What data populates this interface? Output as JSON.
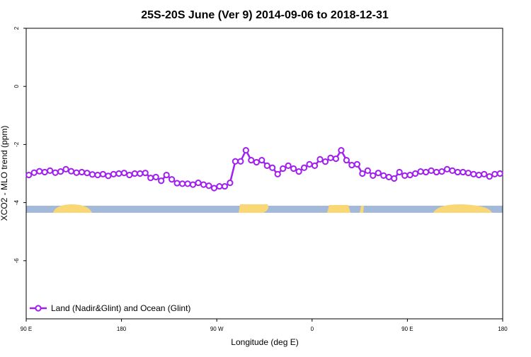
{
  "chart_data": {
    "type": "line",
    "title": "25S-20S June (Ver 9)   2014-09-06 to 2018-12-31",
    "x_label": "Longitude (deg E)",
    "y_label": "XCO2 - MLO trend (ppm)",
    "x": [
      92.5,
      97.5,
      102.5,
      107.5,
      112.5,
      117.5,
      122.5,
      127.5,
      132.5,
      137.5,
      142.5,
      147.5,
      152.5,
      157.5,
      162.5,
      167.5,
      172.5,
      177.5,
      182.5,
      187.5,
      192.5,
      197.5,
      202.5,
      207.5,
      212.5,
      217.5,
      222.5,
      227.5,
      232.5,
      237.5,
      242.5,
      247.5,
      252.5,
      257.5,
      262.5,
      267.5,
      272.5,
      277.5,
      282.5,
      287.5,
      292.5,
      297.5,
      302.5,
      307.5,
      312.5,
      317.5,
      322.5,
      327.5,
      332.5,
      337.5,
      342.5,
      347.5,
      352.5,
      357.5,
      362.5,
      367.5,
      372.5,
      377.5,
      382.5,
      387.5,
      392.5,
      397.5,
      402.5,
      407.5,
      412.5,
      417.5,
      422.5,
      427.5,
      432.5,
      437.5,
      442.5,
      447.5,
      452.5,
      457.5,
      462.5,
      467.5,
      472.5,
      477.5,
      482.5,
      487.5,
      492.5,
      497.5,
      502.5,
      507.5,
      512.5,
      517.5,
      522.5,
      527.5,
      532.5,
      537.5
    ],
    "series": [
      {
        "name": "Land (Nadir&Glint) and Ocean (Glint)",
        "color": "#a020f0",
        "values": [
          -3.05,
          -2.97,
          -2.92,
          -2.95,
          -2.9,
          -2.97,
          -2.93,
          -2.85,
          -2.92,
          -2.97,
          -2.95,
          -2.98,
          -3.03,
          -3.05,
          -3.02,
          -3.08,
          -3.02,
          -3.0,
          -2.98,
          -3.05,
          -3.0,
          -3.0,
          -2.98,
          -3.15,
          -3.12,
          -3.25,
          -3.05,
          -3.2,
          -3.33,
          -3.35,
          -3.35,
          -3.38,
          -3.32,
          -3.38,
          -3.42,
          -3.5,
          -3.44,
          -3.44,
          -3.32,
          -2.58,
          -2.58,
          -2.2,
          -2.54,
          -2.61,
          -2.54,
          -2.73,
          -2.8,
          -3.02,
          -2.83,
          -2.73,
          -2.83,
          -2.93,
          -2.8,
          -2.68,
          -2.73,
          -2.51,
          -2.59,
          -2.46,
          -2.49,
          -2.2,
          -2.54,
          -2.71,
          -2.68,
          -3.0,
          -2.9,
          -3.07,
          -2.98,
          -3.07,
          -3.12,
          -3.17,
          -2.95,
          -3.07,
          -3.05,
          -3.0,
          -2.93,
          -2.95,
          -2.9,
          -2.95,
          -2.93,
          -2.85,
          -2.9,
          -2.95,
          -2.95,
          -2.98,
          -3.02,
          -3.05,
          -3.02,
          -3.1,
          -3.02,
          -3.0
        ]
      }
    ],
    "xlim": [
      90,
      540
    ],
    "xticks": [
      {
        "value": 90,
        "label": "90 E"
      },
      180,
      {
        "value": 270,
        "label": "90 W"
      },
      {
        "value": 360,
        "label": "0"
      },
      {
        "value": 450,
        "label": "90 E"
      },
      {
        "value": 540,
        "label": "180"
      }
    ],
    "ylim": [
      -8,
      2
    ],
    "yticks": [
      2,
      0,
      -2,
      -4,
      -6
    ],
    "legend": "bottom-left"
  }
}
